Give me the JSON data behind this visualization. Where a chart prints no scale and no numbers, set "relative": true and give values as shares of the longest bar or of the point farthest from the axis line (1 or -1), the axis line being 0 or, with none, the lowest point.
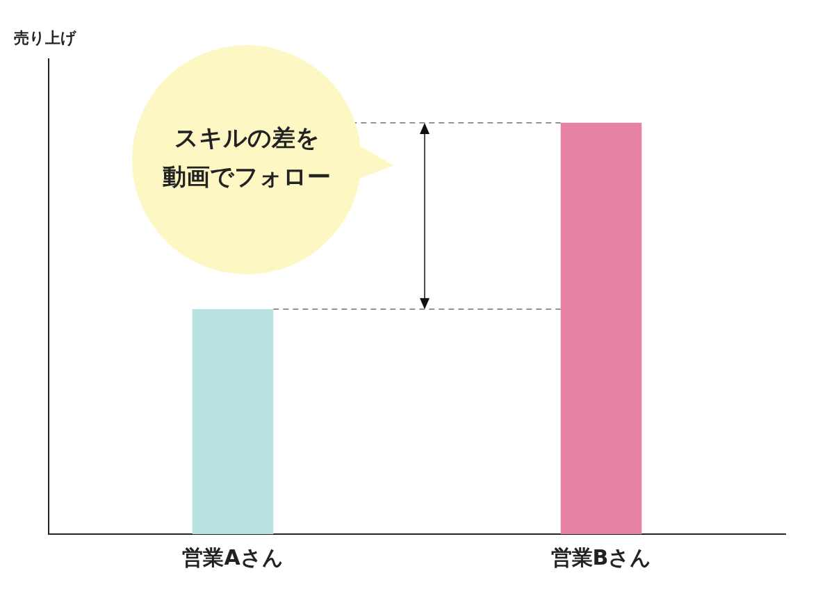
{
  "chart_data": {
    "type": "bar",
    "relative": true,
    "ylabel": "売り上げ",
    "categories": [
      "営業Aさん",
      "営業Bさん"
    ],
    "values": [
      0.547,
      1
    ],
    "colors": [
      "#b9e2e3",
      "#e683a3"
    ],
    "ref_lines": [
      {
        "axis": "y",
        "value": 0.547,
        "line_style": "dashed",
        "color": "#555555"
      },
      {
        "axis": "y",
        "value": 1,
        "line_style": "dashed",
        "color": "#555555"
      }
    ],
    "annotations": [
      "スキルの差を",
      "動画でフォロー"
    ],
    "grid": false,
    "legend": false
  }
}
